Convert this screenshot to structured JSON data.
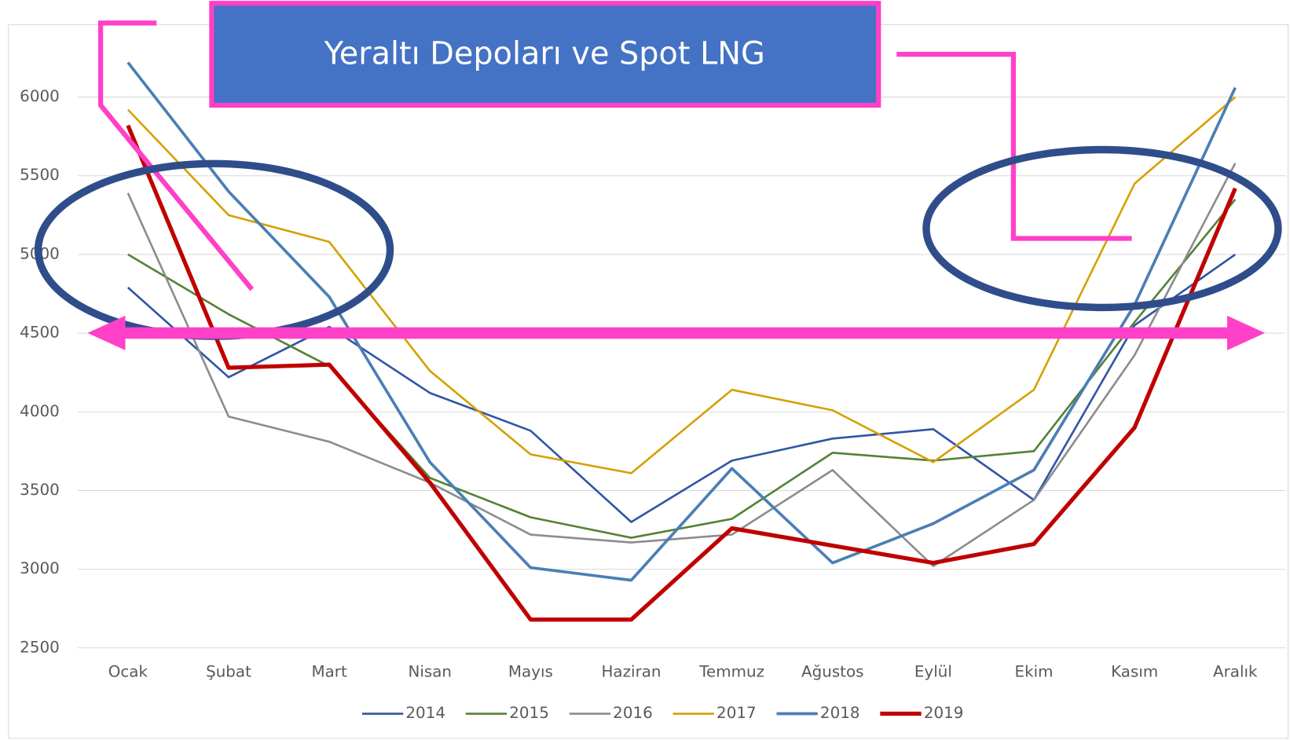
{
  "chart_data": {
    "type": "line",
    "title": "Yeraltı Depoları ve Spot LNG",
    "categories": [
      "Ocak",
      "Şubat",
      "Mart",
      "Nisan",
      "Mayıs",
      "Haziran",
      "Temmuz",
      "Ağustos",
      "Eylül",
      "Ekim",
      "Kasım",
      "Aralık"
    ],
    "series": [
      {
        "name": "2014",
        "color": "#2f55a4",
        "width": 2.5,
        "values": [
          4790,
          4220,
          4540,
          4120,
          3880,
          3300,
          3690,
          3830,
          3890,
          3440,
          4550,
          5000
        ]
      },
      {
        "name": "2015",
        "color": "#548235",
        "width": 2.5,
        "values": [
          5000,
          4620,
          4290,
          3580,
          3330,
          3200,
          3320,
          3740,
          3690,
          3750,
          4570,
          5350
        ]
      },
      {
        "name": "2016",
        "color": "#8c8c8c",
        "width": 2.5,
        "values": [
          5390,
          3970,
          3810,
          3550,
          3220,
          3170,
          3220,
          3630,
          3020,
          3440,
          4360,
          5580
        ]
      },
      {
        "name": "2017",
        "color": "#d6a000",
        "width": 2.5,
        "values": [
          5920,
          5250,
          5080,
          4260,
          3730,
          3610,
          4140,
          4010,
          3680,
          4140,
          5450,
          6000
        ]
      },
      {
        "name": "2018",
        "color": "#4a7fb5",
        "width": 3.5,
        "values": [
          6220,
          5400,
          4730,
          3680,
          3010,
          2930,
          3640,
          3040,
          3290,
          3630,
          4680,
          6060
        ]
      },
      {
        "name": "2019",
        "color": "#c00000",
        "width": 5,
        "values": [
          5820,
          4280,
          4300,
          3550,
          2680,
          2680,
          3260,
          3150,
          3040,
          3160,
          3900,
          5420
        ]
      }
    ],
    "ylim": [
      2500,
      6400
    ],
    "yticks": [
      2500,
      3000,
      3500,
      4000,
      4500,
      5000,
      5500,
      6000
    ],
    "grid": true,
    "legend": "bottom"
  }
}
